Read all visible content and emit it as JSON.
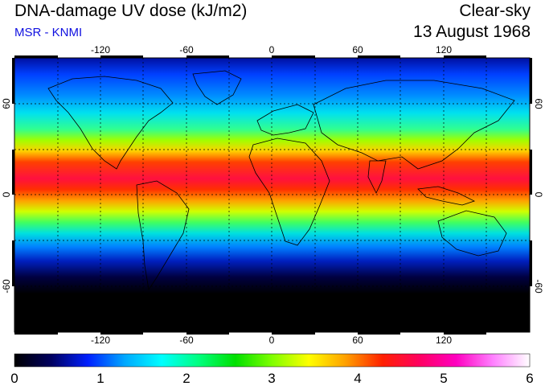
{
  "title": "DNA-damage UV dose (kJ/m2)",
  "subtitle": "MSR - KNMI",
  "condition": "Clear-sky",
  "date": "13 August 1968",
  "map": {
    "lon_ticks": [
      "-120",
      "-60",
      "0",
      "60",
      "120"
    ],
    "lat_ticks_left": [
      "60",
      "0",
      "-60"
    ],
    "lat_ticks_right": [
      "60",
      "0",
      "-60"
    ]
  },
  "colorbar": {
    "labels": [
      "0",
      "1",
      "2",
      "3",
      "4",
      "5",
      "6"
    ],
    "stops": [
      "#000000",
      "#000060",
      "#0020ff",
      "#00a8ff",
      "#00ffff",
      "#00ff80",
      "#00e000",
      "#80ff00",
      "#ffff00",
      "#ffa000",
      "#ff2000",
      "#ff0060",
      "#ff00c0",
      "#ff80ff",
      "#ffffff"
    ]
  },
  "colors": {
    "subtitle": "#1010e0"
  }
}
